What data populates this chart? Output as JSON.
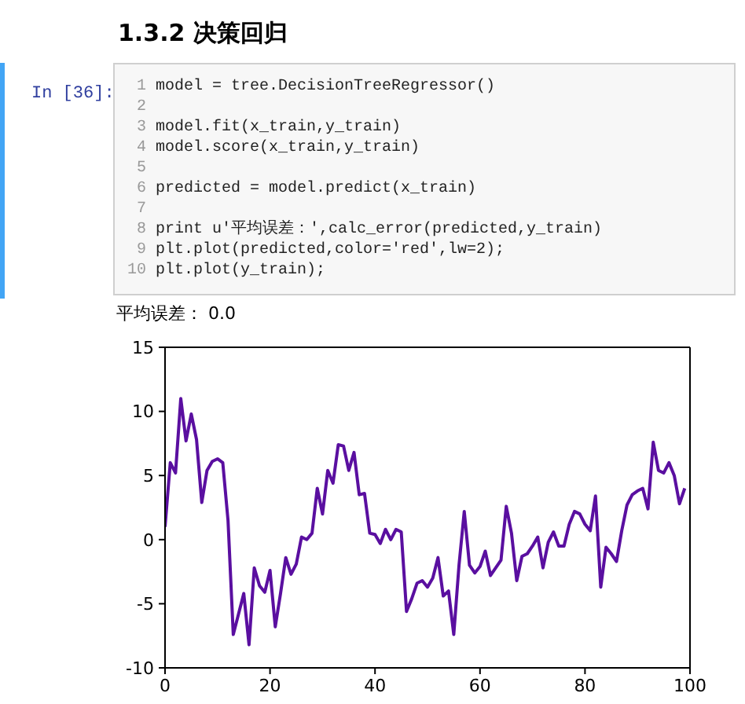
{
  "chart_data": {
    "type": "line",
    "title": "1.3.2 决策回归",
    "annotations": [
      "In [36]:",
      "1 model = tree.DecisionTreeRegressor()",
      "2",
      "3 model.fit(x_train,y_train)",
      "4 model.score(x_train,y_train)",
      "5",
      "6 predicted = model.predict(x_train)",
      "7",
      "8 print u'平均误差：',calc_error(predicted,y_train)",
      "9 plt.plot(predicted,color='red',lw=2);",
      "10 plt.plot(y_train);",
      "平均误差： 0.0"
    ],
    "x": [
      0,
      1,
      2,
      3,
      4,
      5,
      6,
      7,
      8,
      9,
      10,
      11,
      12,
      13,
      14,
      15,
      16,
      17,
      18,
      19,
      20,
      21,
      22,
      23,
      24,
      25,
      26,
      27,
      28,
      29,
      30,
      31,
      32,
      33,
      34,
      35,
      36,
      37,
      38,
      39,
      40,
      41,
      42,
      43,
      44,
      45,
      46,
      47,
      48,
      49,
      50,
      51,
      52,
      53,
      54,
      55,
      56,
      57,
      58,
      59,
      60,
      61,
      62,
      63,
      64,
      65,
      66,
      67,
      68,
      69,
      70,
      71,
      72,
      73,
      74,
      75,
      76,
      77,
      78,
      79,
      80,
      81,
      82,
      83,
      84,
      85,
      86,
      87,
      88,
      89,
      90,
      91,
      92,
      93,
      94,
      95,
      96,
      97,
      98,
      99
    ],
    "series": [
      {
        "color": "#5a0fa0",
        "values": [
          1.0,
          6.0,
          5.2,
          11.0,
          7.7,
          9.8,
          7.8,
          2.9,
          5.4,
          6.1,
          6.3,
          6.0,
          1.5,
          -7.4,
          -5.8,
          -4.2,
          -8.2,
          -2.2,
          -3.6,
          -4.1,
          -2.4,
          -6.8,
          -4.2,
          -1.4,
          -2.7,
          -1.9,
          0.2,
          0.0,
          0.5,
          4.0,
          2.0,
          5.4,
          4.4,
          7.4,
          7.3,
          5.4,
          6.8,
          3.5,
          3.6,
          0.5,
          0.4,
          -0.3,
          0.8,
          0.0,
          0.8,
          0.6,
          -5.6,
          -4.6,
          -3.4,
          -3.2,
          -3.7,
          -3.0,
          -1.4,
          -4.4,
          -4.0,
          -7.4,
          -2.0,
          2.2,
          -2.0,
          -2.6,
          -2.1,
          -0.9,
          -2.8,
          -2.2,
          -1.6,
          2.6,
          0.5,
          -3.2,
          -1.3,
          -1.1,
          -0.5,
          0.2,
          -2.2,
          -0.2,
          0.6,
          -0.5,
          -0.5,
          1.2,
          2.2,
          2.0,
          1.2,
          0.7,
          3.4,
          -3.7,
          -0.6,
          -1.1,
          -1.7,
          0.7,
          2.7,
          3.5,
          3.8,
          4.0,
          2.4,
          7.6,
          5.4,
          5.2,
          6.0,
          5.0,
          2.8,
          4.0
        ]
      }
    ],
    "xlim": [
      0,
      100
    ],
    "xticks": [
      0,
      20,
      40,
      60,
      80,
      100
    ],
    "ylim": [
      -10,
      15
    ],
    "yticks": [
      -10,
      -5,
      0,
      5,
      10,
      15
    ],
    "marker": "none",
    "line_style": "solid"
  }
}
